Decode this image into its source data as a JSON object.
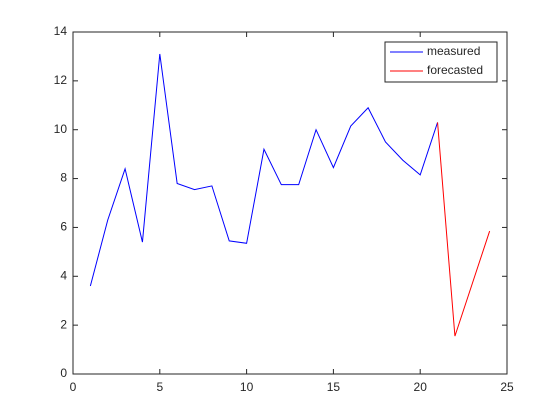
{
  "chart_data": {
    "type": "line",
    "series": [
      {
        "name": "measured",
        "color": "#0000ff",
        "x": [
          1,
          2,
          3,
          4,
          5,
          6,
          7,
          8,
          9,
          10,
          11,
          12,
          13,
          14,
          15,
          16,
          17,
          18,
          19,
          20,
          21
        ],
        "values": [
          3.6,
          6.3,
          8.4,
          5.4,
          13.1,
          7.8,
          7.55,
          7.7,
          5.45,
          5.35,
          9.2,
          7.75,
          7.75,
          10.0,
          8.45,
          10.15,
          10.9,
          9.5,
          8.75,
          8.15,
          10.3
        ]
      },
      {
        "name": "forecasted",
        "color": "#ff0000",
        "x": [
          21,
          22,
          23,
          24
        ],
        "values": [
          10.3,
          1.55,
          3.7,
          5.85
        ]
      }
    ],
    "xlim": [
      0,
      25
    ],
    "xticks": [
      0,
      5,
      10,
      15,
      20,
      25
    ],
    "ylim": [
      0,
      14
    ],
    "yticks": [
      0,
      2,
      4,
      6,
      8,
      10,
      12,
      14
    ],
    "grid": false,
    "legend": "northeast"
  }
}
